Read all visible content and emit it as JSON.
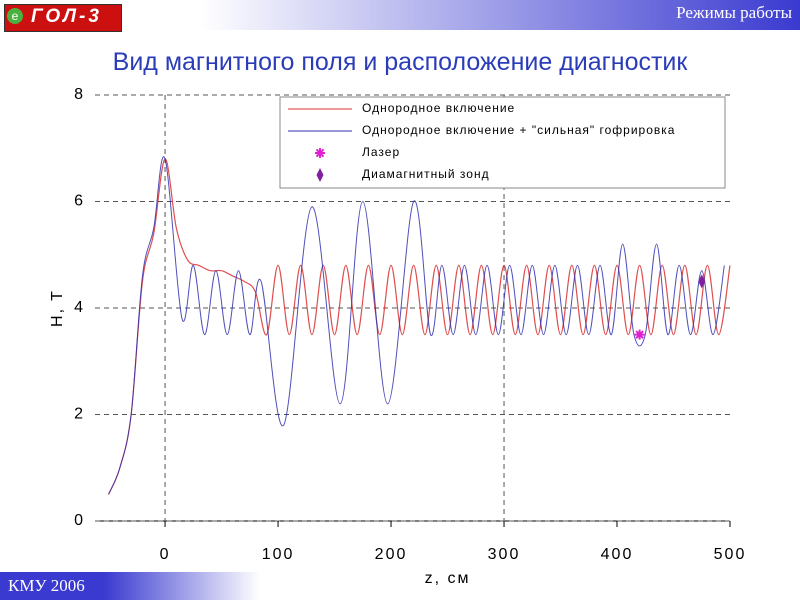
{
  "header": {
    "section": "Режимы работы",
    "logo": "ГОЛ-3",
    "logo_mark": "e"
  },
  "footer": "КМУ 2006",
  "chart_data": {
    "type": "line",
    "title": "Вид магнитного поля и расположение диагностик",
    "xlabel": "z, см",
    "ylabel": "H, T",
    "xlim": [
      -62,
      500
    ],
    "ylim": [
      0,
      8
    ],
    "xticks": [
      0,
      100,
      200,
      300,
      400,
      500
    ],
    "yticks": [
      0,
      2,
      4,
      6,
      8
    ],
    "xgrid_lines": [
      0,
      300
    ],
    "grid": true,
    "series": [
      {
        "name": "Однородное включение",
        "color": "#d83030",
        "x": [
          -50,
          -40,
          -30,
          -20,
          -10,
          0,
          10,
          20,
          30,
          40,
          50,
          60,
          70,
          80,
          90,
          100,
          110,
          120,
          130,
          140,
          150,
          160,
          170,
          180,
          190,
          200,
          210,
          220,
          230,
          240,
          250,
          260,
          270,
          280,
          290,
          300,
          310,
          320,
          330,
          340,
          350,
          360,
          370,
          380,
          390,
          400,
          410,
          420,
          430,
          440,
          450,
          460,
          470,
          480,
          490,
          500
        ],
        "values": [
          0.5,
          1.0,
          2.0,
          4.5,
          5.4,
          6.8,
          5.5,
          4.9,
          4.8,
          4.7,
          4.7,
          4.6,
          4.5,
          4.3,
          3.5,
          4.8,
          3.5,
          4.8,
          3.5,
          4.8,
          3.5,
          4.8,
          3.5,
          4.8,
          3.5,
          4.8,
          3.5,
          4.8,
          3.5,
          4.8,
          3.5,
          4.8,
          3.5,
          4.8,
          3.5,
          4.8,
          3.5,
          4.8,
          3.5,
          4.8,
          3.5,
          4.8,
          3.5,
          4.8,
          3.5,
          4.8,
          3.5,
          4.8,
          3.5,
          4.8,
          3.5,
          4.8,
          3.5,
          4.8,
          3.5,
          4.8
        ]
      },
      {
        "name": "Однородное включение + \"сильная\" гофрировка",
        "color": "#3030b0",
        "x": [
          -50,
          -40,
          -30,
          -20,
          -10,
          0,
          15,
          25,
          35,
          45,
          55,
          65,
          75,
          85,
          105,
          130,
          155,
          175,
          197,
          220,
          235,
          245,
          255,
          265,
          275,
          285,
          295,
          305,
          315,
          325,
          335,
          345,
          355,
          365,
          375,
          385,
          395,
          405,
          415,
          425,
          435,
          445,
          455,
          465,
          475,
          485,
          495
        ],
        "values": [
          0.5,
          1.0,
          2.0,
          4.6,
          5.5,
          6.8,
          3.8,
          4.8,
          3.5,
          4.7,
          3.5,
          4.7,
          3.5,
          4.5,
          1.8,
          5.9,
          2.2,
          6.0,
          2.2,
          6.0,
          3.5,
          4.8,
          3.5,
          4.8,
          3.5,
          4.8,
          3.5,
          4.8,
          3.5,
          4.8,
          3.5,
          4.8,
          3.5,
          4.8,
          3.5,
          4.8,
          3.5,
          5.2,
          3.5,
          3.5,
          5.2,
          3.5,
          4.8,
          3.5,
          4.7,
          3.5,
          4.8
        ]
      }
    ],
    "points": [
      {
        "name": "Лазер",
        "color": "#e020d0",
        "marker": "star",
        "x": 420,
        "y": 3.5
      },
      {
        "name": "Диамагнитный зонд",
        "color": "#8020a0",
        "marker": "diamond",
        "x": 475,
        "y": 4.5
      }
    ]
  }
}
